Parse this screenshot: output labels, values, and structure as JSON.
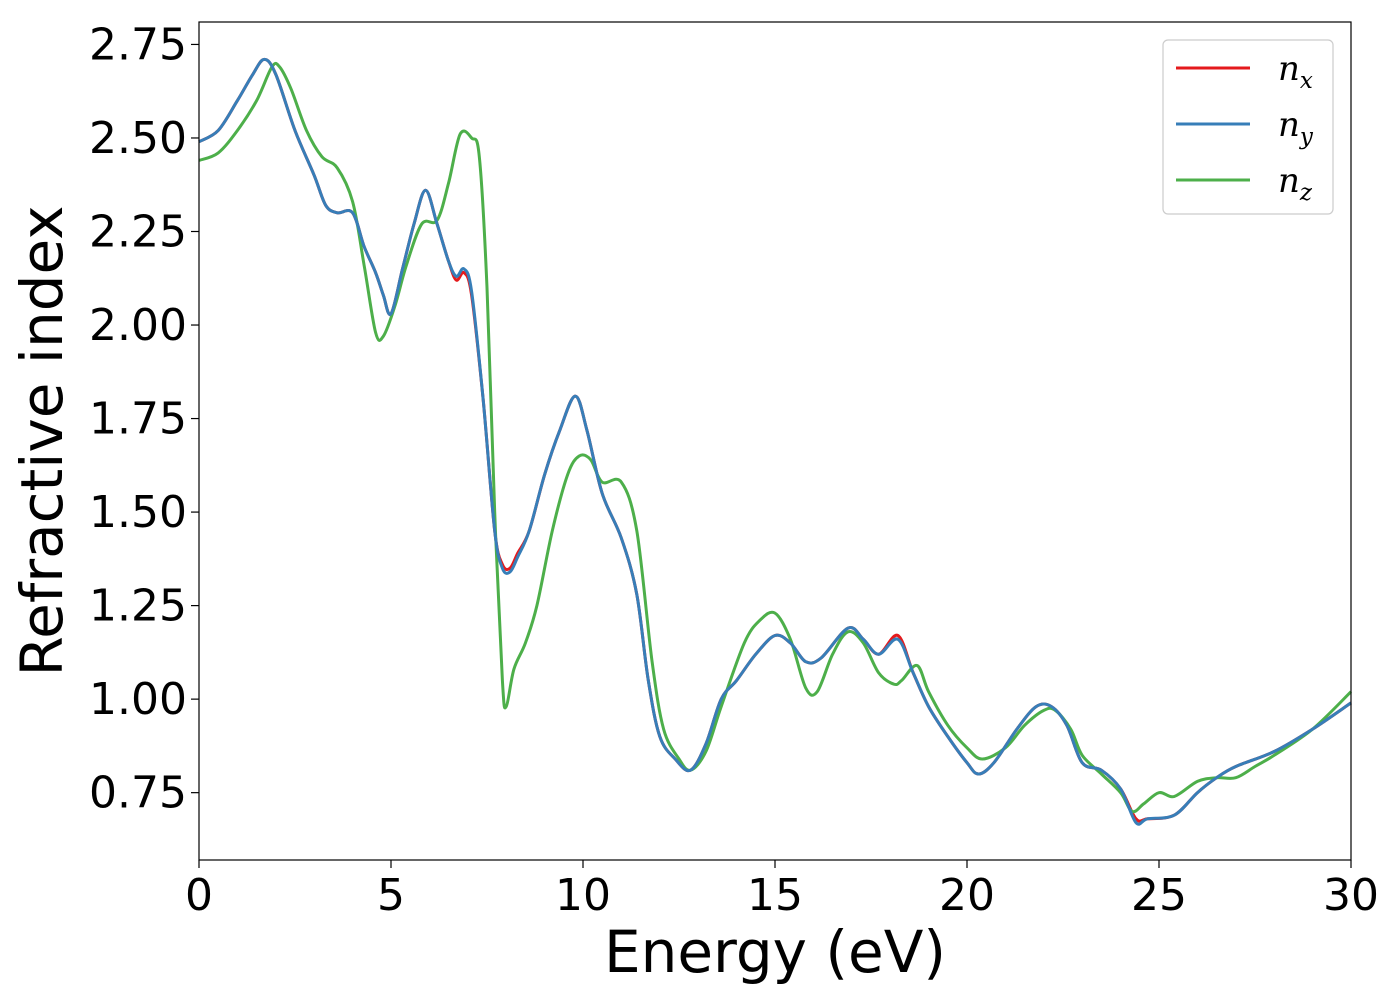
{
  "chart_data": {
    "type": "line",
    "xlabel": "Energy (eV)",
    "ylabel": "Refractive index",
    "xlim": [
      0,
      30
    ],
    "ylim": [
      0.57,
      2.81
    ],
    "xticks": [
      "0",
      "5",
      "10",
      "15",
      "20",
      "25",
      "30"
    ],
    "yticks": [
      "0.75",
      "1.00",
      "1.25",
      "1.50",
      "1.75",
      "2.00",
      "2.25",
      "2.50",
      "2.75"
    ],
    "grid": false,
    "legend_position": "top-right",
    "series": [
      {
        "name": "n_x",
        "legend_base": "n",
        "legend_sub": "x",
        "color": "#e41a1c",
        "points": [
          [
            0,
            2.49
          ],
          [
            0.5,
            2.52
          ],
          [
            1,
            2.6
          ],
          [
            1.4,
            2.67
          ],
          [
            1.7,
            2.71
          ],
          [
            2,
            2.67
          ],
          [
            2.5,
            2.52
          ],
          [
            3,
            2.4
          ],
          [
            3.3,
            2.32
          ],
          [
            3.6,
            2.3
          ],
          [
            4,
            2.3
          ],
          [
            4.3,
            2.21
          ],
          [
            4.6,
            2.14
          ],
          [
            4.8,
            2.08
          ],
          [
            5,
            2.03
          ],
          [
            5.3,
            2.15
          ],
          [
            5.6,
            2.27
          ],
          [
            5.9,
            2.36
          ],
          [
            6.2,
            2.27
          ],
          [
            6.5,
            2.17
          ],
          [
            6.7,
            2.12
          ],
          [
            6.9,
            2.14
          ],
          [
            7.1,
            2.08
          ],
          [
            7.4,
            1.8
          ],
          [
            7.7,
            1.45
          ],
          [
            7.9,
            1.36
          ],
          [
            8.1,
            1.35
          ],
          [
            8.3,
            1.39
          ],
          [
            8.6,
            1.45
          ],
          [
            9,
            1.6
          ],
          [
            9.4,
            1.72
          ],
          [
            9.8,
            1.81
          ],
          [
            10.1,
            1.72
          ],
          [
            10.5,
            1.55
          ],
          [
            11,
            1.43
          ],
          [
            11.4,
            1.28
          ],
          [
            11.7,
            1.05
          ],
          [
            12,
            0.9
          ],
          [
            12.4,
            0.84
          ],
          [
            12.8,
            0.81
          ],
          [
            13.2,
            0.88
          ],
          [
            13.6,
            1.0
          ],
          [
            14,
            1.05
          ],
          [
            14.5,
            1.12
          ],
          [
            15,
            1.17
          ],
          [
            15.4,
            1.15
          ],
          [
            15.8,
            1.1
          ],
          [
            16.2,
            1.11
          ],
          [
            16.9,
            1.19
          ],
          [
            17.3,
            1.16
          ],
          [
            17.7,
            1.12
          ],
          [
            18.2,
            1.17
          ],
          [
            18.6,
            1.07
          ],
          [
            19,
            0.98
          ],
          [
            19.5,
            0.9
          ],
          [
            20,
            0.83
          ],
          [
            20.3,
            0.8
          ],
          [
            20.7,
            0.83
          ],
          [
            21.3,
            0.92
          ],
          [
            21.8,
            0.98
          ],
          [
            22.2,
            0.98
          ],
          [
            22.6,
            0.93
          ],
          [
            23,
            0.83
          ],
          [
            23.5,
            0.81
          ],
          [
            24,
            0.76
          ],
          [
            24.4,
            0.68
          ],
          [
            24.7,
            0.68
          ],
          [
            25.4,
            0.69
          ],
          [
            26,
            0.75
          ],
          [
            26.5,
            0.79
          ],
          [
            27,
            0.82
          ],
          [
            28,
            0.86
          ],
          [
            29,
            0.92
          ],
          [
            30,
            0.99
          ]
        ]
      },
      {
        "name": "n_y",
        "legend_base": "n",
        "legend_sub": "y",
        "color": "#377eb8",
        "points": [
          [
            0,
            2.49
          ],
          [
            0.5,
            2.52
          ],
          [
            1,
            2.6
          ],
          [
            1.4,
            2.67
          ],
          [
            1.7,
            2.71
          ],
          [
            2,
            2.67
          ],
          [
            2.5,
            2.52
          ],
          [
            3,
            2.4
          ],
          [
            3.3,
            2.32
          ],
          [
            3.6,
            2.3
          ],
          [
            4,
            2.3
          ],
          [
            4.3,
            2.21
          ],
          [
            4.6,
            2.14
          ],
          [
            4.8,
            2.08
          ],
          [
            5,
            2.03
          ],
          [
            5.3,
            2.15
          ],
          [
            5.6,
            2.27
          ],
          [
            5.9,
            2.36
          ],
          [
            6.2,
            2.27
          ],
          [
            6.5,
            2.17
          ],
          [
            6.7,
            2.13
          ],
          [
            6.9,
            2.15
          ],
          [
            7.1,
            2.09
          ],
          [
            7.4,
            1.8
          ],
          [
            7.7,
            1.45
          ],
          [
            7.9,
            1.35
          ],
          [
            8.1,
            1.34
          ],
          [
            8.3,
            1.38
          ],
          [
            8.6,
            1.45
          ],
          [
            9,
            1.6
          ],
          [
            9.4,
            1.72
          ],
          [
            9.8,
            1.81
          ],
          [
            10.1,
            1.72
          ],
          [
            10.5,
            1.55
          ],
          [
            11,
            1.43
          ],
          [
            11.4,
            1.28
          ],
          [
            11.7,
            1.05
          ],
          [
            12,
            0.9
          ],
          [
            12.4,
            0.84
          ],
          [
            12.8,
            0.81
          ],
          [
            13.2,
            0.88
          ],
          [
            13.6,
            1.0
          ],
          [
            14,
            1.05
          ],
          [
            14.5,
            1.12
          ],
          [
            15,
            1.17
          ],
          [
            15.4,
            1.15
          ],
          [
            15.8,
            1.1
          ],
          [
            16.2,
            1.11
          ],
          [
            16.9,
            1.19
          ],
          [
            17.3,
            1.16
          ],
          [
            17.7,
            1.12
          ],
          [
            18.2,
            1.16
          ],
          [
            18.6,
            1.07
          ],
          [
            19,
            0.98
          ],
          [
            19.5,
            0.9
          ],
          [
            20,
            0.83
          ],
          [
            20.3,
            0.8
          ],
          [
            20.7,
            0.83
          ],
          [
            21.3,
            0.92
          ],
          [
            21.8,
            0.98
          ],
          [
            22.2,
            0.98
          ],
          [
            22.6,
            0.93
          ],
          [
            23,
            0.83
          ],
          [
            23.5,
            0.81
          ],
          [
            24,
            0.76
          ],
          [
            24.4,
            0.67
          ],
          [
            24.7,
            0.68
          ],
          [
            25.4,
            0.69
          ],
          [
            26,
            0.75
          ],
          [
            26.5,
            0.79
          ],
          [
            27,
            0.82
          ],
          [
            28,
            0.86
          ],
          [
            29,
            0.92
          ],
          [
            30,
            0.99
          ]
        ]
      },
      {
        "name": "n_z",
        "legend_base": "n",
        "legend_sub": "z",
        "color": "#4daf4a",
        "points": [
          [
            0,
            2.44
          ],
          [
            0.5,
            2.46
          ],
          [
            1,
            2.52
          ],
          [
            1.5,
            2.6
          ],
          [
            1.9,
            2.69
          ],
          [
            2.1,
            2.69
          ],
          [
            2.4,
            2.63
          ],
          [
            2.8,
            2.52
          ],
          [
            3.2,
            2.45
          ],
          [
            3.6,
            2.42
          ],
          [
            4,
            2.33
          ],
          [
            4.3,
            2.16
          ],
          [
            4.6,
            1.98
          ],
          [
            4.8,
            1.97
          ],
          [
            5.1,
            2.05
          ],
          [
            5.4,
            2.16
          ],
          [
            5.8,
            2.27
          ],
          [
            6.2,
            2.28
          ],
          [
            6.5,
            2.38
          ],
          [
            6.8,
            2.51
          ],
          [
            7.1,
            2.5
          ],
          [
            7.3,
            2.45
          ],
          [
            7.5,
            2.1
          ],
          [
            7.7,
            1.5
          ],
          [
            7.9,
            1.05
          ],
          [
            8,
            0.98
          ],
          [
            8.2,
            1.08
          ],
          [
            8.5,
            1.15
          ],
          [
            8.8,
            1.25
          ],
          [
            9.2,
            1.45
          ],
          [
            9.6,
            1.6
          ],
          [
            9.9,
            1.65
          ],
          [
            10.2,
            1.64
          ],
          [
            10.5,
            1.58
          ],
          [
            11,
            1.58
          ],
          [
            11.4,
            1.45
          ],
          [
            11.8,
            1.1
          ],
          [
            12.1,
            0.92
          ],
          [
            12.5,
            0.84
          ],
          [
            12.8,
            0.81
          ],
          [
            13.2,
            0.86
          ],
          [
            13.6,
            0.98
          ],
          [
            14.2,
            1.15
          ],
          [
            14.6,
            1.21
          ],
          [
            15,
            1.23
          ],
          [
            15.4,
            1.16
          ],
          [
            15.8,
            1.03
          ],
          [
            16.1,
            1.02
          ],
          [
            16.5,
            1.12
          ],
          [
            16.9,
            1.18
          ],
          [
            17.3,
            1.15
          ],
          [
            17.7,
            1.07
          ],
          [
            18.1,
            1.04
          ],
          [
            18.3,
            1.05
          ],
          [
            18.7,
            1.09
          ],
          [
            19,
            1.02
          ],
          [
            19.5,
            0.93
          ],
          [
            20,
            0.87
          ],
          [
            20.4,
            0.84
          ],
          [
            21,
            0.87
          ],
          [
            21.5,
            0.93
          ],
          [
            22,
            0.97
          ],
          [
            22.3,
            0.97
          ],
          [
            22.7,
            0.92
          ],
          [
            23,
            0.85
          ],
          [
            23.5,
            0.8
          ],
          [
            24,
            0.75
          ],
          [
            24.3,
            0.7
          ],
          [
            24.6,
            0.72
          ],
          [
            25,
            0.75
          ],
          [
            25.4,
            0.74
          ],
          [
            26,
            0.78
          ],
          [
            26.5,
            0.79
          ],
          [
            27,
            0.79
          ],
          [
            27.5,
            0.82
          ],
          [
            28,
            0.85
          ],
          [
            29,
            0.92
          ],
          [
            30,
            1.02
          ]
        ]
      }
    ]
  }
}
